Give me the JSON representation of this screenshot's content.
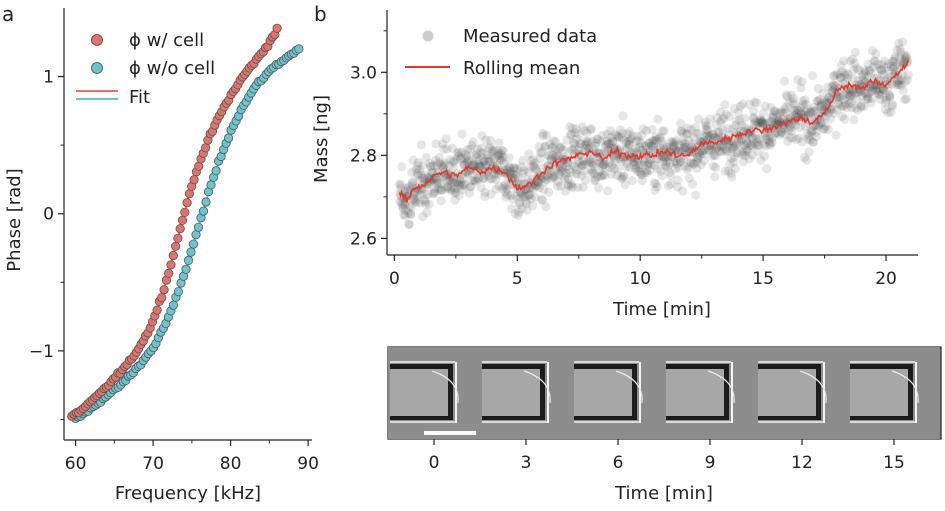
{
  "panels": {
    "a_letter": "a",
    "b_letter": "b"
  },
  "chart_data": [
    {
      "id": "panel-a",
      "type": "scatter",
      "title": "",
      "xlabel": "Frequency [kHz]",
      "ylabel": "Phase [rad]",
      "xlim": [
        58.5,
        90.5
      ],
      "ylim": [
        -1.65,
        1.5
      ],
      "xticks": [
        60,
        70,
        80,
        90
      ],
      "xtick_labels": [
        "60",
        "70",
        "80",
        "90"
      ],
      "yticks": [
        -1,
        0,
        1
      ],
      "ytick_labels": [
        "−1",
        "0",
        "1"
      ],
      "legend": {
        "position": "top-left",
        "entries": [
          "ϕ w/ cell",
          "ϕ w/o cell",
          "Fit"
        ]
      },
      "series": [
        {
          "name": "ϕ w/ cell",
          "kind": "markers",
          "color": "#e0736a",
          "x": [
            59.5,
            61,
            63,
            65,
            67,
            69,
            70,
            71,
            72,
            73,
            74,
            75,
            76,
            77,
            78,
            79,
            80,
            81,
            82,
            83,
            84,
            85,
            86
          ],
          "y": [
            -1.48,
            -1.42,
            -1.32,
            -1.2,
            -1.08,
            -0.9,
            -0.78,
            -0.62,
            -0.43,
            -0.22,
            0.0,
            0.2,
            0.38,
            0.52,
            0.65,
            0.76,
            0.86,
            0.95,
            1.03,
            1.1,
            1.17,
            1.25,
            1.34
          ]
        },
        {
          "name": "ϕ w/o cell",
          "kind": "markers",
          "color": "#6bc4cf",
          "x": [
            60,
            62,
            64,
            66,
            68,
            70,
            72,
            73,
            74,
            75,
            76,
            77,
            78,
            79,
            80,
            81,
            82,
            83,
            84,
            85,
            86,
            87,
            88,
            88.8
          ],
          "y": [
            -1.5,
            -1.42,
            -1.33,
            -1.24,
            -1.12,
            -0.98,
            -0.76,
            -0.61,
            -0.44,
            -0.26,
            -0.07,
            0.12,
            0.3,
            0.46,
            0.6,
            0.72,
            0.82,
            0.91,
            0.98,
            1.04,
            1.09,
            1.13,
            1.17,
            1.2
          ]
        },
        {
          "name": "Fit",
          "kind": "line",
          "colors": [
            "#e0736a",
            "#6bc4cf"
          ]
        }
      ]
    },
    {
      "id": "panel-b",
      "type": "scatter",
      "title": "",
      "xlabel": "Time [min]",
      "ylabel": "Mass [ng]",
      "xlim": [
        -0.3,
        21.3
      ],
      "ylim": [
        2.56,
        3.15
      ],
      "xticks": [
        0,
        5,
        10,
        15,
        20
      ],
      "xtick_labels": [
        "0",
        "5",
        "10",
        "15",
        "20"
      ],
      "yticks": [
        2.6,
        2.8,
        3.0
      ],
      "ytick_labels": [
        "2.6",
        "2.8",
        "3.0"
      ],
      "legend": {
        "position": "top-left",
        "entries": [
          "Measured data",
          "Rolling mean"
        ]
      },
      "series": [
        {
          "name": "Measured data",
          "kind": "markers",
          "color": "#555555",
          "noise_sd": 0.05
        },
        {
          "name": "Rolling mean",
          "kind": "line",
          "color": "#e03a2c",
          "x": [
            0.2,
            0.5,
            0.8,
            1.2,
            1.6,
            2.0,
            2.5,
            3.0,
            3.5,
            4.0,
            4.5,
            5.0,
            5.5,
            6.0,
            6.5,
            7.0,
            7.5,
            8.0,
            8.5,
            9.0,
            9.5,
            10.0,
            10.5,
            11.0,
            11.5,
            12.0,
            12.5,
            13.0,
            13.5,
            14.0,
            14.5,
            15.0,
            15.5,
            16.0,
            16.5,
            17.0,
            17.5,
            17.8,
            18.0,
            18.5,
            19.0,
            19.5,
            20.0,
            20.5,
            20.9
          ],
          "y": [
            2.71,
            2.69,
            2.72,
            2.73,
            2.75,
            2.76,
            2.75,
            2.77,
            2.76,
            2.77,
            2.76,
            2.72,
            2.73,
            2.76,
            2.78,
            2.79,
            2.8,
            2.81,
            2.79,
            2.81,
            2.8,
            2.8,
            2.8,
            2.81,
            2.8,
            2.8,
            2.83,
            2.83,
            2.84,
            2.85,
            2.86,
            2.86,
            2.87,
            2.88,
            2.89,
            2.88,
            2.9,
            2.93,
            2.96,
            2.97,
            2.96,
            2.98,
            2.97,
            3.0,
            3.02
          ]
        }
      ]
    },
    {
      "id": "panel-c",
      "type": "image-strip",
      "xlabel": "Time [min]",
      "categories": [
        "0",
        "3",
        "6",
        "9",
        "12",
        "15"
      ]
    }
  ]
}
